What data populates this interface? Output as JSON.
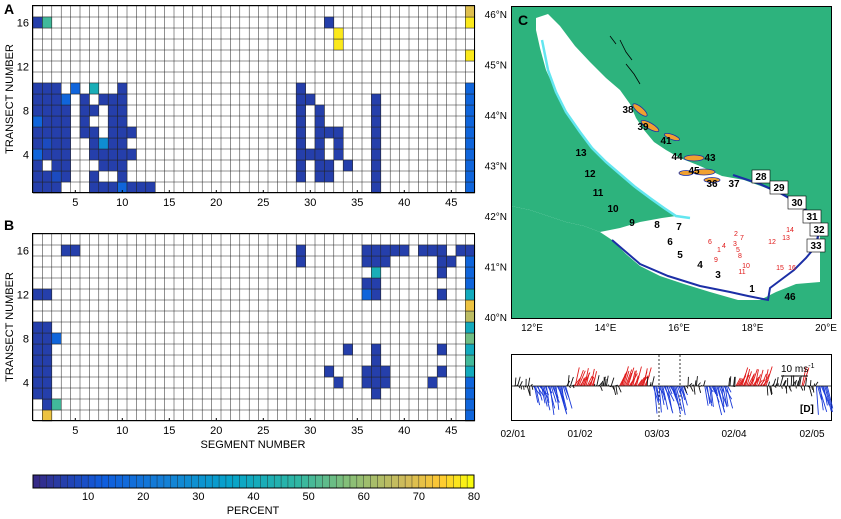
{
  "colors": {
    "land": "#2db37d",
    "coast": "#63e6f0",
    "boundary": "#1c2fa6",
    "label_red": "#e01818",
    "island_orange": "#f0a030",
    "wind_red": "#e01818",
    "wind_blue": "#1a3ad8",
    "wind_black": "#111111"
  },
  "panel_a": {
    "letter": "A",
    "ylabel": "TRANSECT NUMBER"
  },
  "panel_b": {
    "letter": "B",
    "ylabel": "TRANSECT NUMBER",
    "xlabel": "SEGMENT NUMBER"
  },
  "colorbar": {
    "label": "PERCENT",
    "ticks": [
      "10",
      "20",
      "30",
      "40",
      "50",
      "60",
      "70",
      "80"
    ]
  },
  "map": {
    "letter": "C",
    "lat_labels": [
      "46°N",
      "45°N",
      "44°N",
      "43°N",
      "42°N",
      "41°N",
      "40°N"
    ],
    "lon_labels": [
      "12°E",
      "14°E",
      "16°E",
      "18°E",
      "20°E"
    ],
    "segment_labels": [
      "1",
      "3",
      "4",
      "5",
      "6",
      "7",
      "8",
      "9",
      "10",
      "11",
      "12",
      "13",
      "36",
      "37",
      "38",
      "39",
      "41",
      "43",
      "44",
      "45",
      "46"
    ],
    "boxed_labels": [
      "28",
      "29",
      "30",
      "31",
      "32",
      "33"
    ],
    "station_labels": [
      "1",
      "2",
      "3",
      "4",
      "5",
      "6",
      "7",
      "8",
      "9",
      "10",
      "11",
      "12",
      "13",
      "14",
      "15",
      "16"
    ]
  },
  "wind": {
    "letter": "[D]",
    "scale_label": "10 ms",
    "scale_exp": "-1",
    "dates": [
      "02/01",
      "01/02",
      "03/03",
      "02/04",
      "02/05"
    ]
  },
  "chart_data": [
    {
      "type": "heatmap",
      "panel": "A",
      "xlabel": "",
      "ylabel": "TRANSECT NUMBER",
      "x_ticks": [
        5,
        10,
        15,
        20,
        25,
        30,
        35,
        40,
        45
      ],
      "y_ticks": [
        4,
        8,
        12,
        16
      ],
      "xlim": [
        1,
        47
      ],
      "ylim": [
        1,
        17
      ],
      "value_range": [
        0,
        80
      ],
      "cells": [
        [
          1,
          1,
          5
        ],
        [
          2,
          1,
          5
        ],
        [
          3,
          1,
          5
        ],
        [
          7,
          1,
          5
        ],
        [
          8,
          1,
          5
        ],
        [
          9,
          1,
          5
        ],
        [
          10,
          1,
          15
        ],
        [
          11,
          1,
          5
        ],
        [
          12,
          1,
          5
        ],
        [
          13,
          1,
          5
        ],
        [
          37,
          1,
          5
        ],
        [
          47,
          1,
          15
        ],
        [
          1,
          2,
          5
        ],
        [
          2,
          2,
          5
        ],
        [
          3,
          2,
          8
        ],
        [
          4,
          2,
          5
        ],
        [
          7,
          2,
          5
        ],
        [
          10,
          2,
          5
        ],
        [
          29,
          2,
          5
        ],
        [
          31,
          2,
          5
        ],
        [
          32,
          2,
          5
        ],
        [
          37,
          2,
          5
        ],
        [
          47,
          2,
          15
        ],
        [
          1,
          3,
          5
        ],
        [
          3,
          3,
          5
        ],
        [
          4,
          3,
          5
        ],
        [
          8,
          3,
          5
        ],
        [
          9,
          3,
          5
        ],
        [
          10,
          3,
          5
        ],
        [
          29,
          3,
          5
        ],
        [
          31,
          3,
          5
        ],
        [
          32,
          3,
          5
        ],
        [
          34,
          3,
          5
        ],
        [
          37,
          3,
          5
        ],
        [
          47,
          3,
          15
        ],
        [
          1,
          4,
          15
        ],
        [
          2,
          4,
          5
        ],
        [
          3,
          4,
          5
        ],
        [
          4,
          4,
          5
        ],
        [
          7,
          4,
          5
        ],
        [
          8,
          4,
          5
        ],
        [
          9,
          4,
          5
        ],
        [
          10,
          4,
          5
        ],
        [
          11,
          4,
          5
        ],
        [
          29,
          4,
          5
        ],
        [
          30,
          4,
          5
        ],
        [
          31,
          4,
          5
        ],
        [
          33,
          4,
          5
        ],
        [
          37,
          4,
          5
        ],
        [
          47,
          4,
          15
        ],
        [
          1,
          5,
          5
        ],
        [
          2,
          5,
          8
        ],
        [
          3,
          5,
          5
        ],
        [
          4,
          5,
          5
        ],
        [
          7,
          5,
          5
        ],
        [
          8,
          5,
          28
        ],
        [
          9,
          5,
          5
        ],
        [
          10,
          5,
          5
        ],
        [
          29,
          5,
          5
        ],
        [
          31,
          5,
          5
        ],
        [
          33,
          5,
          5
        ],
        [
          37,
          5,
          5
        ],
        [
          47,
          5,
          15
        ],
        [
          1,
          6,
          5
        ],
        [
          2,
          6,
          5
        ],
        [
          3,
          6,
          5
        ],
        [
          4,
          6,
          5
        ],
        [
          6,
          6,
          5
        ],
        [
          7,
          6,
          5
        ],
        [
          9,
          6,
          5
        ],
        [
          10,
          6,
          5
        ],
        [
          11,
          6,
          5
        ],
        [
          29,
          6,
          5
        ],
        [
          31,
          6,
          5
        ],
        [
          32,
          6,
          5
        ],
        [
          33,
          6,
          5
        ],
        [
          37,
          6,
          5
        ],
        [
          47,
          6,
          15
        ],
        [
          1,
          7,
          15
        ],
        [
          2,
          7,
          5
        ],
        [
          3,
          7,
          5
        ],
        [
          4,
          7,
          5
        ],
        [
          6,
          7,
          5
        ],
        [
          9,
          7,
          5
        ],
        [
          10,
          7,
          5
        ],
        [
          29,
          7,
          5
        ],
        [
          31,
          7,
          5
        ],
        [
          37,
          7,
          5
        ],
        [
          47,
          7,
          15
        ],
        [
          1,
          8,
          5
        ],
        [
          2,
          8,
          5
        ],
        [
          3,
          8,
          5
        ],
        [
          4,
          8,
          5
        ],
        [
          6,
          8,
          5
        ],
        [
          7,
          8,
          5
        ],
        [
          9,
          8,
          5
        ],
        [
          10,
          8,
          5
        ],
        [
          29,
          8,
          5
        ],
        [
          31,
          8,
          5
        ],
        [
          37,
          8,
          5
        ],
        [
          47,
          8,
          15
        ],
        [
          1,
          9,
          5
        ],
        [
          2,
          9,
          5
        ],
        [
          3,
          9,
          5
        ],
        [
          4,
          9,
          15
        ],
        [
          6,
          9,
          5
        ],
        [
          8,
          9,
          5
        ],
        [
          9,
          9,
          5
        ],
        [
          10,
          9,
          5
        ],
        [
          29,
          9,
          5
        ],
        [
          30,
          9,
          5
        ],
        [
          37,
          9,
          5
        ],
        [
          47,
          9,
          15
        ],
        [
          1,
          10,
          5
        ],
        [
          2,
          10,
          5
        ],
        [
          3,
          10,
          5
        ],
        [
          5,
          10,
          15
        ],
        [
          7,
          10,
          42
        ],
        [
          10,
          10,
          5
        ],
        [
          29,
          10,
          5
        ],
        [
          47,
          10,
          15
        ],
        [
          47,
          13,
          78
        ],
        [
          33,
          14,
          78
        ],
        [
          33,
          15,
          78
        ],
        [
          47,
          16,
          78
        ],
        [
          1,
          16,
          5
        ],
        [
          2,
          16,
          50
        ],
        [
          32,
          16,
          5
        ],
        [
          47,
          17,
          70
        ]
      ]
    },
    {
      "type": "heatmap",
      "panel": "B",
      "xlabel": "SEGMENT NUMBER",
      "ylabel": "TRANSECT NUMBER",
      "x_ticks": [
        5,
        10,
        15,
        20,
        25,
        30,
        35,
        40,
        45
      ],
      "y_ticks": [
        4,
        8,
        12,
        16
      ],
      "xlim": [
        1,
        47
      ],
      "ylim": [
        1,
        17
      ],
      "value_range": [
        0,
        80
      ],
      "cells": [
        [
          2,
          1,
          72
        ],
        [
          47,
          1,
          15
        ],
        [
          2,
          2,
          5
        ],
        [
          3,
          2,
          50
        ],
        [
          47,
          2,
          15
        ],
        [
          1,
          3,
          5
        ],
        [
          2,
          3,
          5
        ],
        [
          37,
          3,
          5
        ],
        [
          47,
          3,
          15
        ],
        [
          1,
          4,
          5
        ],
        [
          2,
          4,
          5
        ],
        [
          33,
          4,
          5
        ],
        [
          36,
          4,
          5
        ],
        [
          37,
          4,
          5
        ],
        [
          38,
          4,
          5
        ],
        [
          43,
          4,
          5
        ],
        [
          47,
          4,
          15
        ],
        [
          1,
          5,
          5
        ],
        [
          2,
          5,
          5
        ],
        [
          32,
          5,
          5
        ],
        [
          36,
          5,
          5
        ],
        [
          37,
          5,
          5
        ],
        [
          38,
          5,
          5
        ],
        [
          44,
          5,
          5
        ],
        [
          47,
          5,
          40
        ],
        [
          1,
          6,
          5
        ],
        [
          2,
          6,
          5
        ],
        [
          37,
          6,
          5
        ],
        [
          47,
          6,
          50
        ],
        [
          1,
          7,
          5
        ],
        [
          2,
          7,
          5
        ],
        [
          34,
          7,
          5
        ],
        [
          37,
          7,
          5
        ],
        [
          44,
          7,
          5
        ],
        [
          47,
          7,
          40
        ],
        [
          1,
          8,
          5
        ],
        [
          2,
          8,
          5
        ],
        [
          3,
          8,
          15
        ],
        [
          47,
          8,
          55
        ],
        [
          1,
          9,
          5
        ],
        [
          2,
          9,
          5
        ],
        [
          47,
          9,
          40
        ],
        [
          47,
          10,
          65
        ],
        [
          47,
          11,
          72
        ],
        [
          1,
          12,
          5
        ],
        [
          2,
          12,
          5
        ],
        [
          36,
          12,
          15
        ],
        [
          37,
          12,
          5
        ],
        [
          44,
          12,
          5
        ],
        [
          47,
          12,
          40
        ],
        [
          36,
          13,
          5
        ],
        [
          37,
          13,
          5
        ],
        [
          47,
          13,
          15
        ],
        [
          37,
          14,
          42
        ],
        [
          44,
          14,
          5
        ],
        [
          47,
          14,
          15
        ],
        [
          29,
          15,
          5
        ],
        [
          36,
          15,
          5
        ],
        [
          37,
          15,
          5
        ],
        [
          38,
          15,
          5
        ],
        [
          44,
          15,
          5
        ],
        [
          45,
          15,
          5
        ],
        [
          47,
          15,
          15
        ],
        [
          4,
          16,
          5
        ],
        [
          5,
          16,
          5
        ],
        [
          29,
          16,
          5
        ],
        [
          36,
          16,
          5
        ],
        [
          37,
          16,
          5
        ],
        [
          38,
          16,
          5
        ],
        [
          39,
          16,
          5
        ],
        [
          40,
          16,
          5
        ],
        [
          42,
          16,
          5
        ],
        [
          43,
          16,
          5
        ],
        [
          44,
          16,
          5
        ],
        [
          46,
          16,
          5
        ],
        [
          47,
          16,
          5
        ]
      ]
    },
    {
      "type": "colorbar",
      "label": "PERCENT",
      "range": [
        0,
        80
      ],
      "ticks": [
        10,
        20,
        30,
        40,
        50,
        60,
        70,
        80
      ]
    }
  ]
}
